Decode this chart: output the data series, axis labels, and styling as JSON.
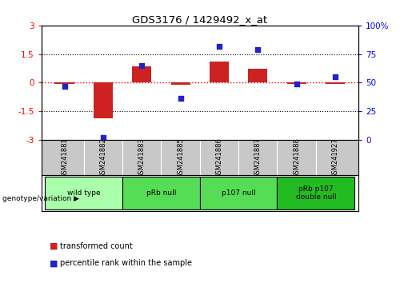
{
  "title": "GDS3176 / 1429492_x_at",
  "samples": [
    "GSM241881",
    "GSM241882",
    "GSM241883",
    "GSM241885",
    "GSM241886",
    "GSM241887",
    "GSM241888",
    "GSM241927"
  ],
  "red_values": [
    -0.05,
    -1.85,
    0.85,
    -0.12,
    1.1,
    0.75,
    -0.05,
    -0.05
  ],
  "blue_values": [
    47,
    2,
    65,
    36,
    82,
    79,
    49,
    55
  ],
  "ylim_left": [
    -3,
    3
  ],
  "ylim_right": [
    0,
    100
  ],
  "yticks_left": [
    -3,
    -1.5,
    0,
    1.5,
    3
  ],
  "yticks_right": [
    0,
    25,
    50,
    75,
    100
  ],
  "ytick_labels_left": [
    "-3",
    "-1.5",
    "0",
    "1.5",
    "3"
  ],
  "ytick_labels_right": [
    "0",
    "25",
    "50",
    "75",
    "100%"
  ],
  "groups": [
    {
      "label": "wild type",
      "start": 0,
      "end": 1,
      "color": "#AAFFAA"
    },
    {
      "label": "pRb null",
      "start": 2,
      "end": 3,
      "color": "#55DD55"
    },
    {
      "label": "p107 null",
      "start": 4,
      "end": 5,
      "color": "#55DD55"
    },
    {
      "label": "pRb p107\ndouble null",
      "start": 6,
      "end": 7,
      "color": "#22BB22"
    }
  ],
  "red_color": "#CC2222",
  "blue_color": "#2222CC",
  "legend_red": "transformed count",
  "legend_blue": "percentile rank within the sample",
  "genotype_label": "genotype/variation",
  "sample_bg": "#C8C8C8",
  "bar_width": 0.5
}
